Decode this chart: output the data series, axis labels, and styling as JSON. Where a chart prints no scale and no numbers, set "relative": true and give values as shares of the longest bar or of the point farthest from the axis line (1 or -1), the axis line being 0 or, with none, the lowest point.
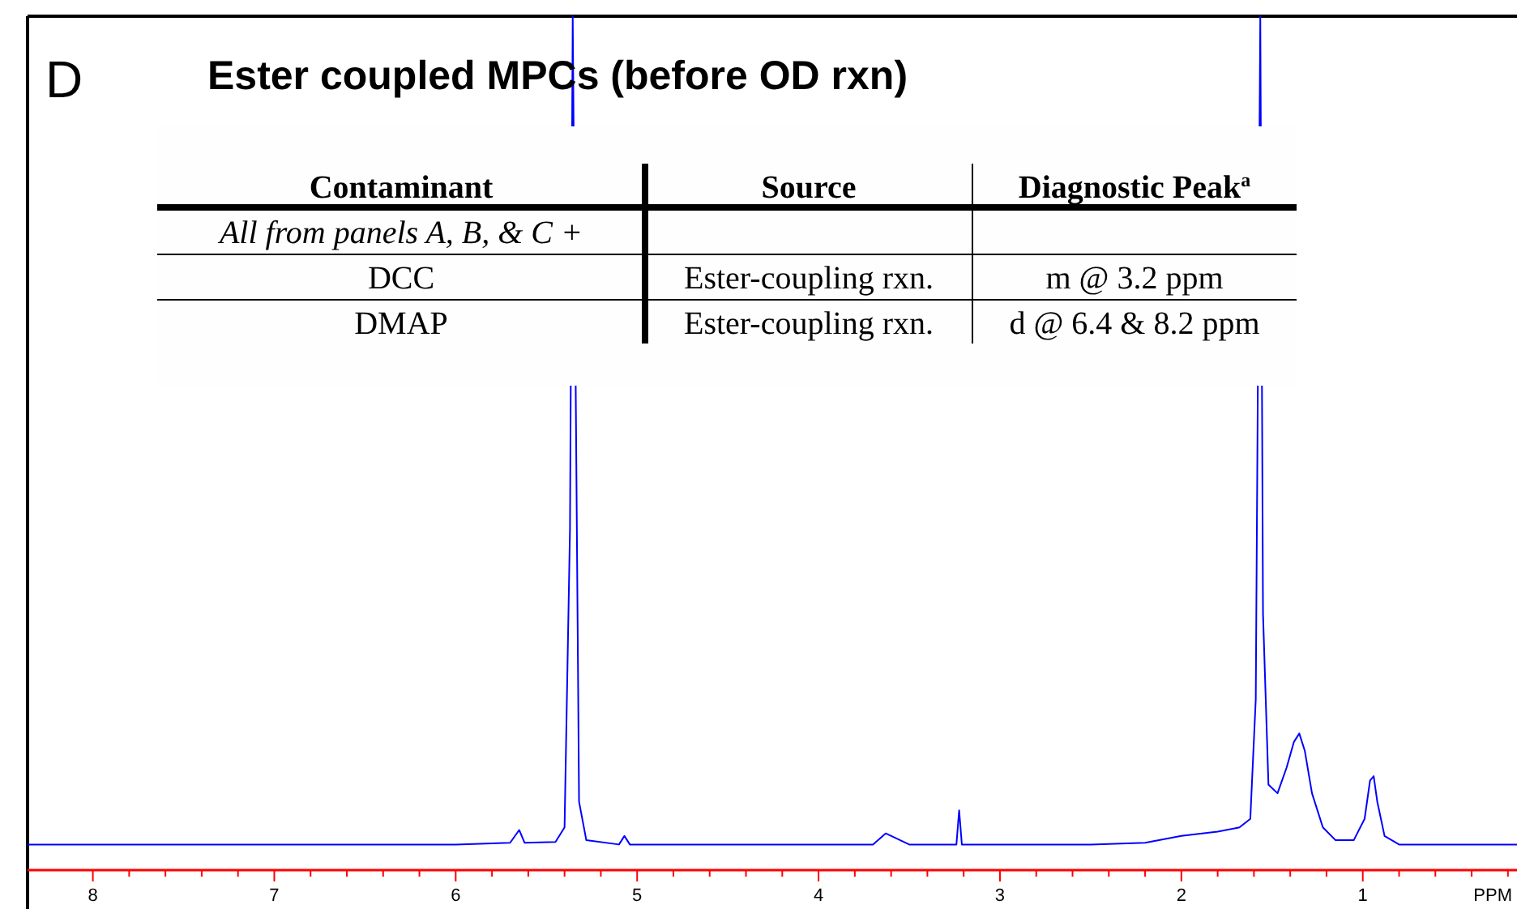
{
  "chart_data": {
    "type": "line",
    "title": "Ester coupled MPCs  (before OD rxn)",
    "xlabel": "PPM",
    "relative": true,
    "annotations": [
      "D",
      "Contaminant",
      "Source",
      "Diagnostic Peak$^{a}$",
      "All from panels A, B, & C +",
      "DCC",
      "Ester-coupling rxn.",
      "m @ 3.2 ppm",
      "DMAP",
      "Ester-coupling rxn.",
      "d @ 6.4 & 8.2 ppm"
    ],
    "xlim": [
      8.36,
      0.15
    ],
    "xticks": [
      8,
      {
        "value": 7.8,
        "label": null
      },
      {
        "value": 7.6,
        "label": null
      },
      {
        "value": 7.4,
        "label": null
      },
      {
        "value": 7.2,
        "label": null
      },
      7,
      {
        "value": 6.8,
        "label": null
      },
      {
        "value": 6.6,
        "label": null
      },
      {
        "value": 6.4,
        "label": null
      },
      {
        "value": 6.2,
        "label": null
      },
      6,
      {
        "value": 5.8,
        "label": null
      },
      {
        "value": 5.6,
        "label": null
      },
      {
        "value": 5.4,
        "label": null
      },
      {
        "value": 5.2,
        "label": null
      },
      5,
      {
        "value": 4.8,
        "label": null
      },
      {
        "value": 4.6,
        "label": null
      },
      {
        "value": 4.4,
        "label": null
      },
      {
        "value": 4.2,
        "label": null
      },
      4,
      {
        "value": 3.8,
        "label": null
      },
      {
        "value": 3.6,
        "label": null
      },
      {
        "value": 3.4,
        "label": null
      },
      {
        "value": 3.2,
        "label": null
      },
      3,
      {
        "value": 2.8,
        "label": null
      },
      {
        "value": 2.6,
        "label": null
      },
      {
        "value": 2.4,
        "label": null
      },
      {
        "value": 2.2,
        "label": null
      },
      2,
      {
        "value": 1.8,
        "label": null
      },
      {
        "value": 1.6,
        "label": null
      },
      {
        "value": 1.4,
        "label": null
      },
      {
        "value": 1.2,
        "label": null
      },
      1,
      {
        "value": 0.8,
        "label": null
      },
      {
        "value": 0.6,
        "label": null
      },
      {
        "value": 0.4,
        "label": null
      },
      {
        "value": 0.2,
        "label": null
      }
    ],
    "grid": false,
    "marker": "none",
    "line_style": "solid",
    "series": [
      {
        "color": "#0000ff",
        "x": [
          8.36,
          8.0,
          7.0,
          6.0,
          5.7,
          5.65,
          5.62,
          5.45,
          5.4,
          5.37,
          5.355,
          5.32,
          5.28,
          5.1,
          5.07,
          5.04,
          4.5,
          3.7,
          3.63,
          3.58,
          3.5,
          3.24,
          3.225,
          3.21,
          2.5,
          2.2,
          2.0,
          1.8,
          1.68,
          1.62,
          1.59,
          1.565,
          1.55,
          1.52,
          1.47,
          1.42,
          1.38,
          1.35,
          1.32,
          1.28,
          1.22,
          1.15,
          1.05,
          0.99,
          0.96,
          0.94,
          0.92,
          0.88,
          0.8,
          0.5,
          0.15
        ],
        "values": [
          0.03,
          0.03,
          0.03,
          0.03,
          0.032,
          0.047,
          0.032,
          0.033,
          0.05,
          0.4,
          1,
          0.08,
          0.035,
          0.03,
          0.04,
          0.03,
          0.03,
          0.03,
          0.043,
          0.038,
          0.03,
          0.03,
          0.07,
          0.03,
          0.03,
          0.032,
          0.04,
          0.045,
          0.05,
          0.06,
          0.2,
          1,
          0.3,
          0.1,
          0.09,
          0.12,
          0.15,
          0.16,
          0.14,
          0.09,
          0.05,
          0.035,
          0.035,
          0.06,
          0.105,
          0.11,
          0.08,
          0.04,
          0.03,
          0.03,
          0.03
        ]
      }
    ]
  }
}
